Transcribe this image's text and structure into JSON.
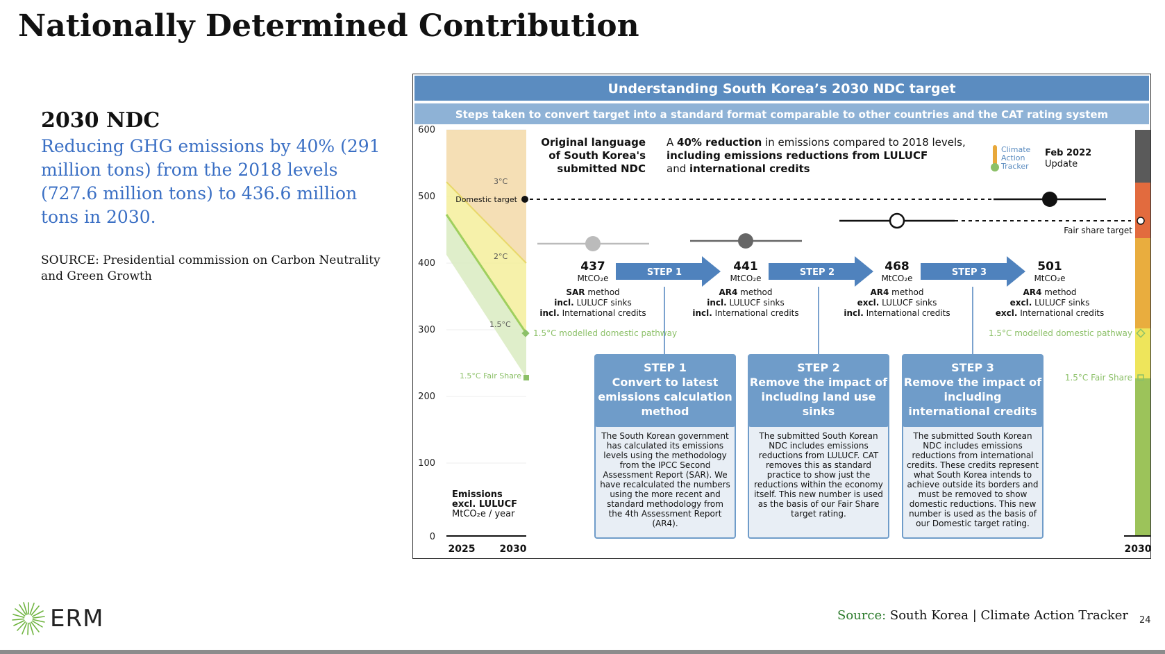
{
  "slide": {
    "title": "Nationally Determined Contribution",
    "ndc_heading": "2030 NDC",
    "ndc_text": "Reducing GHG emissions by 40% (291 million tons) from the 2018 levels (727.6 million tons) to 436.6 million tons in 2030.",
    "source_left": "SOURCE: Presidential commission on Carbon Neutrality and Green Growth",
    "source_bottom_label": "Source:",
    "source_bottom_text": " South Korea | Climate Action Tracker",
    "page_number": "24",
    "logo_text": "ERM"
  },
  "diagram": {
    "title": "Understanding South Korea’s 2030 NDC target",
    "subtitle": "Steps taken to convert target into a standard format comparable to other countries and the CAT rating system",
    "y_ticks": [
      "600",
      "500",
      "400",
      "300",
      "200",
      "100",
      "0"
    ],
    "x_left": [
      "2025",
      "2030"
    ],
    "x_right": "2030",
    "axis_title": [
      "Emissions",
      "excl. LULUCF",
      "MtCO₂e / year"
    ],
    "pathway_labels": {
      "three_c": "3°C",
      "two_c": "2°C",
      "one_five_c": "1.5°C",
      "fair_share": "1.5°C Fair Share",
      "domestic_target": "Domestic target",
      "modelled_pathway": "1.5°C modelled domestic pathway",
      "fair_share_target": "Fair share target"
    },
    "original": {
      "label": [
        "Original language",
        "of South Korea's",
        "submitted NDC"
      ],
      "desc_1_plain": "A ",
      "desc_1_bold": "40% reduction",
      "desc_1_rest": " in emissions compared to 2018 levels,",
      "desc_2": "including emissions reductions from LULUCF",
      "desc_3_plain": "and ",
      "desc_3_bold": "international credits"
    },
    "cat_badge": {
      "logo_lines": [
        "Climate",
        "Action",
        "Tracker"
      ],
      "date": "Feb 2022",
      "update": "Update"
    },
    "values": [
      {
        "value": "437",
        "unit": "MtCO₂e",
        "method_b": "SAR",
        "method": " method",
        "sinks_b": "incl.",
        "sinks": " LULUCF sinks",
        "credits_b": "incl.",
        "credits": " International credits"
      },
      {
        "value": "441",
        "unit": "MtCO₂e",
        "method_b": "AR4",
        "method": " method",
        "sinks_b": "incl.",
        "sinks": " LULUCF sinks",
        "credits_b": "incl.",
        "credits": " International credits"
      },
      {
        "value": "468",
        "unit": "MtCO₂e",
        "method_b": "AR4",
        "method": " method",
        "sinks_b": "excl.",
        "sinks": " LULUCF sinks",
        "credits_b": "incl.",
        "credits": " International credits"
      },
      {
        "value": "501",
        "unit": "MtCO₂e",
        "method_b": "AR4",
        "method": " method",
        "sinks_b": "excl.",
        "sinks": " LULUCF sinks",
        "credits_b": "excl.",
        "credits": " International credits"
      }
    ],
    "step_arrows": [
      "STEP 1",
      "STEP 2",
      "STEP 3"
    ],
    "step_boxes": [
      {
        "title": [
          "STEP 1",
          "Convert to latest",
          "emissions calculation",
          "method"
        ],
        "body": [
          "The South Korean government",
          "has calculated its emissions",
          "levels using the methodology",
          "from the IPCC Second",
          "Assessment Report (SAR). We",
          "have recalculated the numbers",
          "using the more recent and",
          "standard methodology from",
          "the 4th Assessment Report",
          "(AR4)."
        ]
      },
      {
        "title": [
          "STEP 2",
          "Remove the impact of",
          "including land use",
          "sinks"
        ],
        "body": [
          "The submitted South Korean",
          "NDC includes emissions",
          "reductions from LULUCF. CAT",
          "removes this as standard",
          "practice to show just the",
          "reductions within the economy",
          "itself. This new number is used",
          "as the basis of our Fair Share",
          "target rating."
        ]
      },
      {
        "title": [
          "STEP 3",
          "Remove the impact of",
          "including",
          "international credits"
        ],
        "body": [
          "The submitted South Korean",
          "NDC includes emissions",
          "reductions from international",
          "credits. These credits represent",
          "what South Korea intends to",
          "achieve outside its borders and",
          "must be removed to show",
          "domestic reductions. This new",
          "number is used as the basis of",
          "our Domestic target rating."
        ]
      }
    ],
    "colors": {
      "header_blue": "#5b8cc0",
      "subheader_blue": "#8eb2d6",
      "box_blue": "#6f9cc9",
      "box_body": "#e8eef5",
      "green": "#8cc068",
      "yellow": "#efe770",
      "orange": "#f0c88e",
      "bar_dark": "#5a5a5a",
      "bar_red": "#e26b3e",
      "bar_orange": "#e9ad3e",
      "bar_yellow": "#eee55b",
      "bar_green": "#9cc35a"
    }
  }
}
